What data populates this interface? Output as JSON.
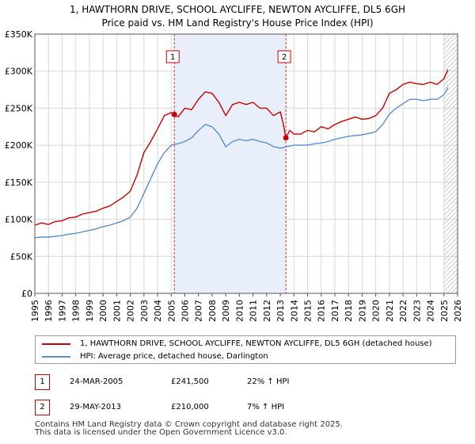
{
  "title_line1": "1, HAWTHORN DRIVE, SCHOOL AYCLIFFE, NEWTON AYCLIFFE, DL5 6GH",
  "title_line2": "Price paid vs. HM Land Registry's House Price Index (HPI)",
  "colors": {
    "property": "#cc0000",
    "hpi": "#5b8fc9",
    "shade": "#e8effa",
    "grid": "#d8d8d8",
    "vline": "#cc0000"
  },
  "chart_data": {
    "type": "line",
    "title": "Price paid vs. HM Land Registry's House Price Index (HPI)",
    "xlabel": "",
    "ylabel": "",
    "xlim": [
      1995,
      2026
    ],
    "ylim": [
      0,
      350000
    ],
    "x_ticks": [
      "1995",
      "1996",
      "1997",
      "1998",
      "1999",
      "2000",
      "2001",
      "2002",
      "2003",
      "2004",
      "2005",
      "2006",
      "2007",
      "2008",
      "2009",
      "2010",
      "2011",
      "2012",
      "2013",
      "2014",
      "2015",
      "2016",
      "2017",
      "2018",
      "2019",
      "2020",
      "2021",
      "2022",
      "2023",
      "2024",
      "2025",
      "2026"
    ],
    "y_ticks": [
      {
        "value": 0,
        "label": "£0"
      },
      {
        "value": 50000,
        "label": "£50K"
      },
      {
        "value": 100000,
        "label": "£100K"
      },
      {
        "value": 150000,
        "label": "£150K"
      },
      {
        "value": 200000,
        "label": "£200K"
      },
      {
        "value": 250000,
        "label": "£250K"
      },
      {
        "value": 300000,
        "label": "£300K"
      },
      {
        "value": 350000,
        "label": "£350K"
      }
    ],
    "shaded_range": [
      2005.23,
      2013.41
    ],
    "hatched_from": 2025.0,
    "series": [
      {
        "name": "1, HAWTHORN DRIVE, SCHOOL AYCLIFFE, NEWTON AYCLIFFE, DL5 6GH (detached house)",
        "color": "#cc0000",
        "x": [
          1995.0,
          1995.5,
          1996.0,
          1996.5,
          1997.0,
          1997.5,
          1998.0,
          1998.5,
          1999.0,
          1999.5,
          2000.0,
          2000.5,
          2001.0,
          2001.5,
          2002.0,
          2002.5,
          2003.0,
          2003.5,
          2004.0,
          2004.5,
          2005.0,
          2005.23,
          2005.5,
          2006.0,
          2006.5,
          2007.0,
          2007.5,
          2008.0,
          2008.5,
          2009.0,
          2009.5,
          2010.0,
          2010.5,
          2011.0,
          2011.5,
          2012.0,
          2012.5,
          2013.0,
          2013.2,
          2013.41,
          2013.7,
          2014.0,
          2014.5,
          2015.0,
          2015.5,
          2016.0,
          2016.5,
          2017.0,
          2017.5,
          2018.0,
          2018.5,
          2019.0,
          2019.5,
          2020.0,
          2020.5,
          2021.0,
          2021.5,
          2022.0,
          2022.5,
          2023.0,
          2023.5,
          2024.0,
          2024.5,
          2025.0,
          2025.3
        ],
        "values": [
          92000,
          95000,
          93000,
          97000,
          98000,
          102000,
          103000,
          107000,
          109000,
          111000,
          115000,
          118000,
          124000,
          130000,
          138000,
          160000,
          190000,
          205000,
          222000,
          240000,
          244000,
          241500,
          238000,
          250000,
          248000,
          262000,
          272000,
          270000,
          258000,
          240000,
          255000,
          258000,
          255000,
          258000,
          250000,
          250000,
          240000,
          245000,
          230000,
          210000,
          220000,
          215000,
          215000,
          220000,
          218000,
          225000,
          222000,
          228000,
          232000,
          235000,
          238000,
          235000,
          236000,
          240000,
          250000,
          270000,
          275000,
          282000,
          285000,
          283000,
          282000,
          285000,
          282000,
          290000,
          302000
        ]
      },
      {
        "name": "HPI: Average price, detached house, Darlington",
        "color": "#5b8fc9",
        "x": [
          1995.0,
          1995.5,
          1996.0,
          1996.5,
          1997.0,
          1997.5,
          1998.0,
          1998.5,
          1999.0,
          1999.5,
          2000.0,
          2000.5,
          2001.0,
          2001.5,
          2002.0,
          2002.5,
          2003.0,
          2003.5,
          2004.0,
          2004.5,
          2005.0,
          2005.5,
          2006.0,
          2006.5,
          2007.0,
          2007.5,
          2008.0,
          2008.5,
          2009.0,
          2009.5,
          2010.0,
          2010.5,
          2011.0,
          2011.5,
          2012.0,
          2012.5,
          2013.0,
          2013.5,
          2014.0,
          2014.5,
          2015.0,
          2015.5,
          2016.0,
          2016.5,
          2017.0,
          2017.5,
          2018.0,
          2018.5,
          2019.0,
          2019.5,
          2020.0,
          2020.5,
          2021.0,
          2021.5,
          2022.0,
          2022.5,
          2023.0,
          2023.5,
          2024.0,
          2024.5,
          2025.0,
          2025.3
        ],
        "values": [
          75000,
          76000,
          76000,
          77000,
          78000,
          80000,
          81000,
          83000,
          85000,
          87000,
          90000,
          92000,
          95000,
          98000,
          103000,
          115000,
          135000,
          155000,
          175000,
          190000,
          200000,
          202000,
          205000,
          210000,
          220000,
          228000,
          225000,
          215000,
          198000,
          205000,
          208000,
          206000,
          208000,
          205000,
          203000,
          198000,
          196000,
          198000,
          200000,
          200000,
          200000,
          202000,
          203000,
          205000,
          208000,
          210000,
          212000,
          213000,
          214000,
          216000,
          218000,
          228000,
          242000,
          250000,
          256000,
          262000,
          262000,
          260000,
          262000,
          262000,
          268000,
          278000
        ]
      }
    ],
    "sales": [
      {
        "marker": "1",
        "x": 2005.23,
        "value": 241500
      },
      {
        "marker": "2",
        "x": 2013.41,
        "value": 210000
      }
    ]
  },
  "legend": {
    "property": "1, HAWTHORN DRIVE, SCHOOL AYCLIFFE, NEWTON AYCLIFFE, DL5 6GH (detached house)",
    "hpi": "HPI: Average price, detached house, Darlington"
  },
  "sales_table": [
    {
      "marker": "1",
      "date": "24-MAR-2005",
      "price": "£241,500",
      "hpi": "22% ↑ HPI"
    },
    {
      "marker": "2",
      "date": "29-MAY-2013",
      "price": "£210,000",
      "hpi": "7% ↑ HPI"
    }
  ],
  "footer_line1": "Contains HM Land Registry data © Crown copyright and database right 2025.",
  "footer_line2": "This data is licensed under the Open Government Licence v3.0."
}
